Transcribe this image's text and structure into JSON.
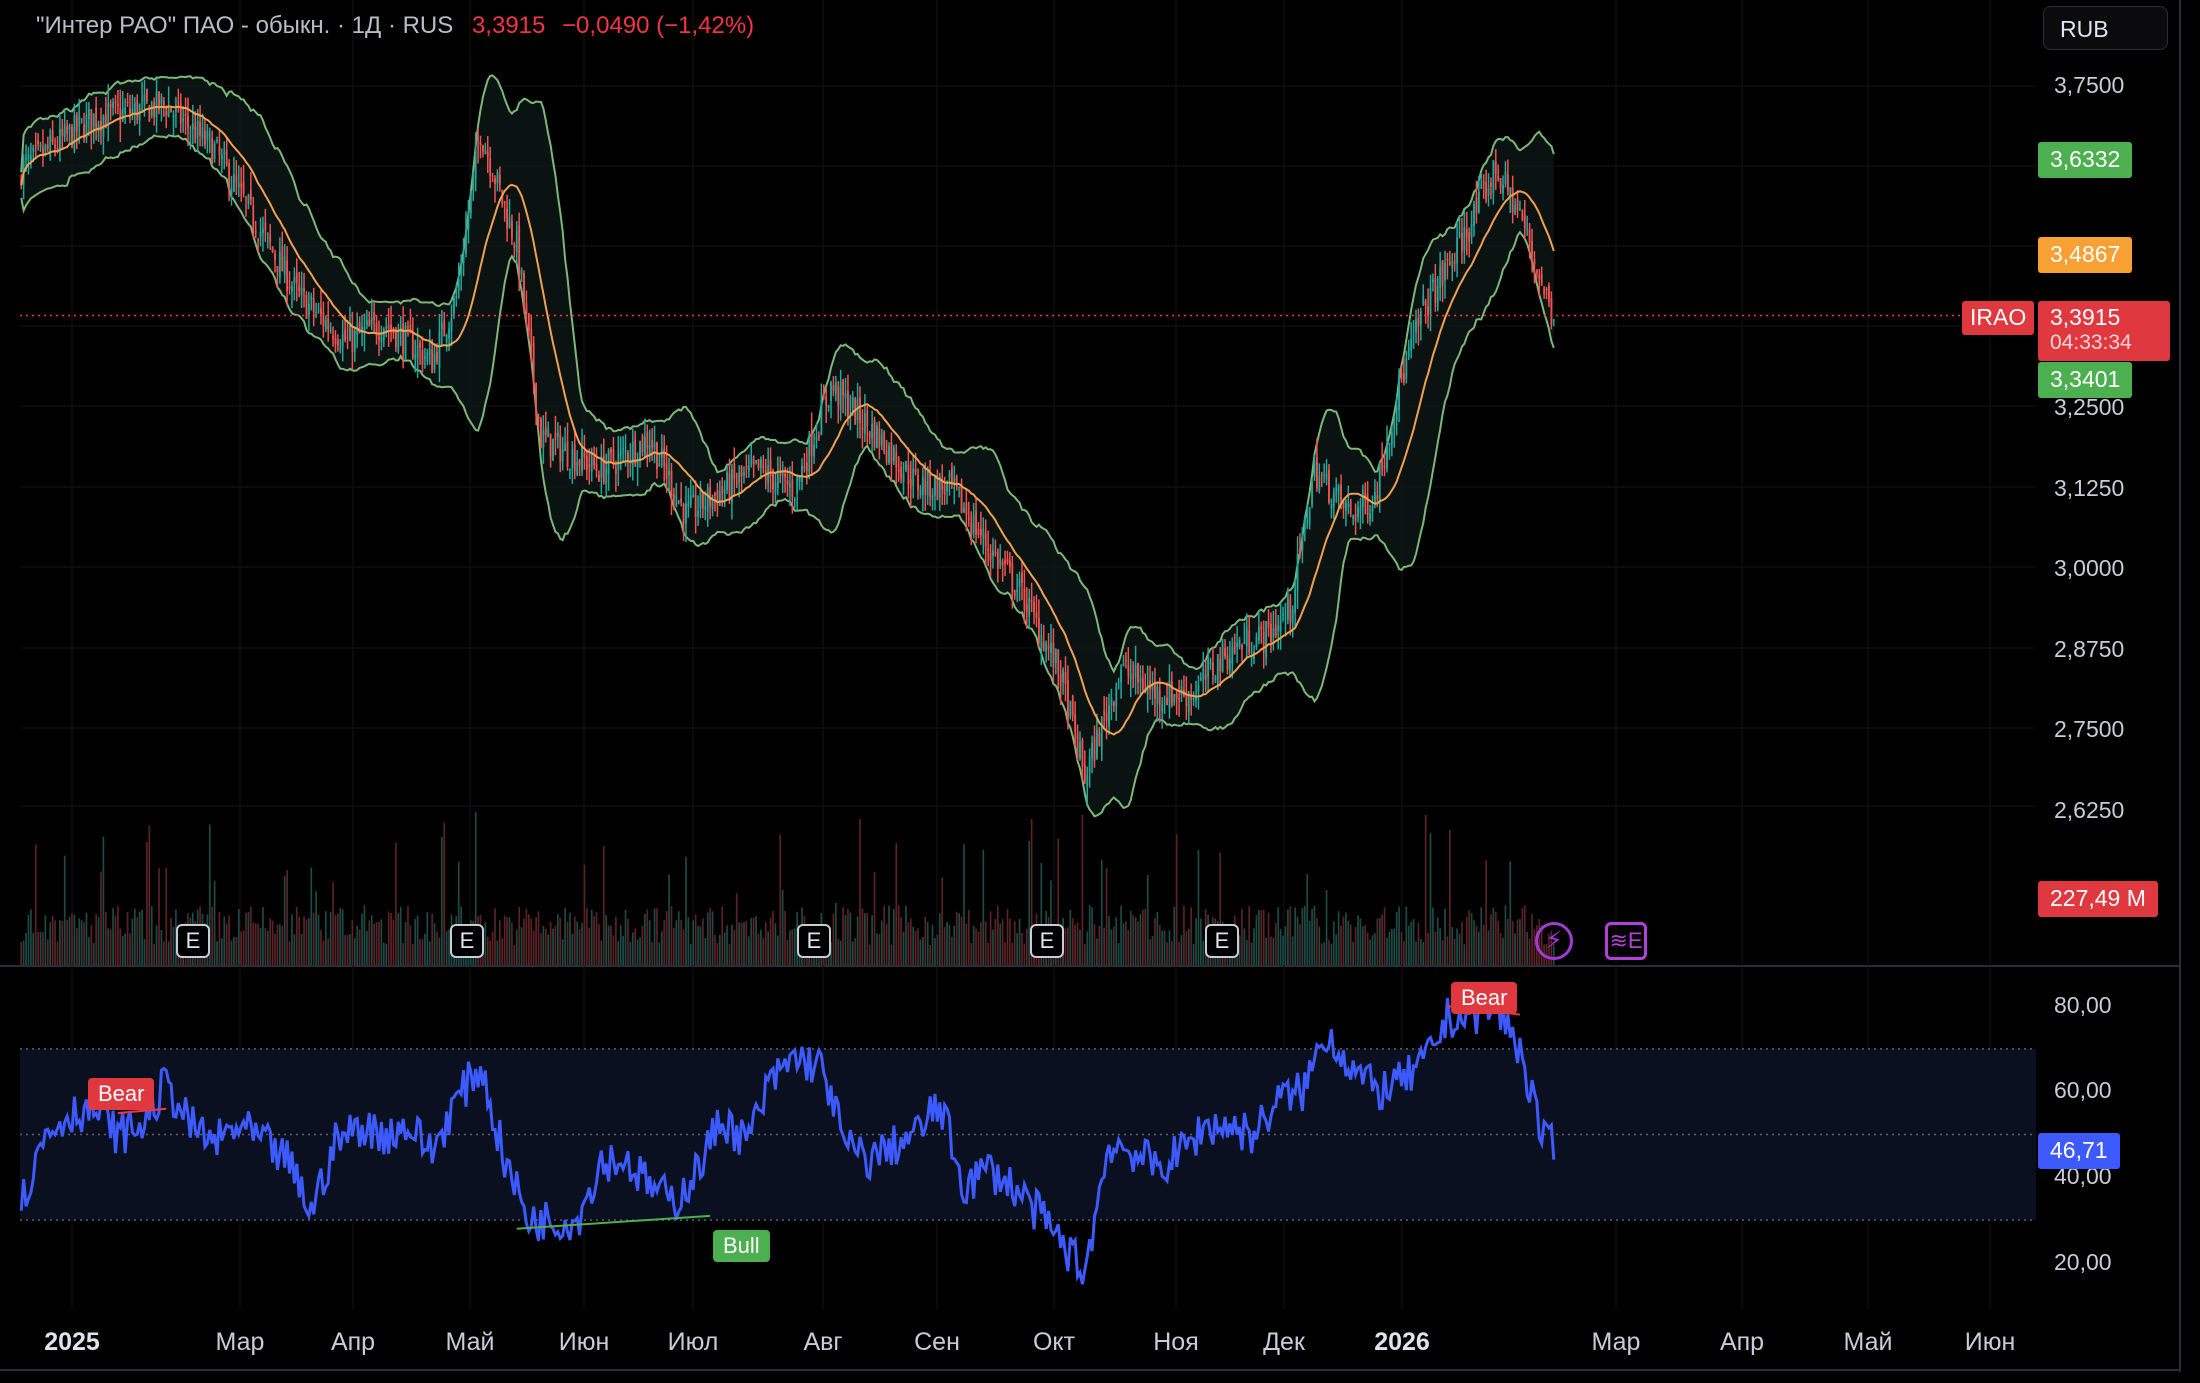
{
  "legend": {
    "symbol": "\"Интер РАО\" ПАО - обыкн. · 1Д · RUS",
    "price": "3,3915",
    "change": "−0,0490 (−1,42%)"
  },
  "currency_button": "RUB",
  "price_scale": {
    "ticks": [
      "3,7500",
      "3,2500",
      "3,1250",
      "3,0000",
      "2,8750",
      "2,7500",
      "2,6250"
    ],
    "tags": {
      "upper_band": "3,6332",
      "middle_band": "3,4867",
      "ticker": "IRAO",
      "last_price": "3,3915",
      "countdown": "04:33:34",
      "lower_band": "3,3401",
      "volume": "227,49 M"
    }
  },
  "rsi_scale": {
    "ticks": [
      "80,00",
      "60,00",
      "40,00",
      "20,00"
    ],
    "value": "46,71"
  },
  "time_axis": [
    {
      "label": "2025",
      "year": true
    },
    {
      "label": "Мар",
      "year": false
    },
    {
      "label": "Апр",
      "year": false
    },
    {
      "label": "Май",
      "year": false
    },
    {
      "label": "Июн",
      "year": false
    },
    {
      "label": "Июл",
      "year": false
    },
    {
      "label": "Авг",
      "year": false
    },
    {
      "label": "Сен",
      "year": false
    },
    {
      "label": "Окт",
      "year": false
    },
    {
      "label": "Ноя",
      "year": false
    },
    {
      "label": "Дек",
      "year": false
    },
    {
      "label": "2026",
      "year": true
    },
    {
      "label": "Мар",
      "year": false
    },
    {
      "label": "Апр",
      "year": false
    },
    {
      "label": "Май",
      "year": false
    },
    {
      "label": "Июн",
      "year": false
    }
  ],
  "earnings_marker": "E",
  "signals": {
    "bear1": "Bear",
    "bull": "Bull",
    "bear2": "Bear"
  },
  "icons": {
    "flash": "flash-icon",
    "earnings_next": "earnings-calendar-icon",
    "flash_glyph": "⚡",
    "earnings_glyph": "≋E"
  },
  "colors": {
    "up": "#26a69a",
    "down": "#ef5350",
    "rsi": "#3d5afe",
    "band": "#7cb879",
    "basis": "#f0a050",
    "bear": "#f23645",
    "bull": "#4caf50"
  },
  "chart_data": {
    "type": "candlestick",
    "price_range": [
      2.6,
      3.8
    ],
    "rsi_range": [
      10,
      90
    ],
    "close_anchors": [
      [
        0,
        3.62
      ],
      [
        30,
        3.7
      ],
      [
        60,
        3.72
      ],
      [
        80,
        3.65
      ],
      [
        95,
        3.55
      ],
      [
        115,
        3.42
      ],
      [
        135,
        3.35
      ],
      [
        150,
        3.38
      ],
      [
        170,
        3.32
      ],
      [
        180,
        3.42
      ],
      [
        190,
        3.68
      ],
      [
        205,
        3.5
      ],
      [
        215,
        3.2
      ],
      [
        240,
        3.15
      ],
      [
        260,
        3.2
      ],
      [
        275,
        3.08
      ],
      [
        295,
        3.13
      ],
      [
        305,
        3.15
      ],
      [
        320,
        3.12
      ],
      [
        335,
        3.28
      ],
      [
        355,
        3.2
      ],
      [
        370,
        3.13
      ],
      [
        385,
        3.12
      ],
      [
        400,
        3.03
      ],
      [
        415,
        2.95
      ],
      [
        430,
        2.83
      ],
      [
        440,
        2.67
      ],
      [
        455,
        2.84
      ],
      [
        470,
        2.8
      ],
      [
        485,
        2.8
      ],
      [
        495,
        2.85
      ],
      [
        505,
        2.88
      ],
      [
        515,
        2.89
      ],
      [
        525,
        2.93
      ],
      [
        535,
        3.15
      ],
      [
        550,
        3.08
      ],
      [
        560,
        3.11
      ],
      [
        570,
        3.28
      ],
      [
        580,
        3.4
      ],
      [
        595,
        3.5
      ],
      [
        610,
        3.62
      ],
      [
        620,
        3.55
      ],
      [
        630,
        3.43
      ],
      [
        634,
        3.39
      ]
    ],
    "rsi_anchors": [
      [
        0,
        34
      ],
      [
        10,
        50
      ],
      [
        20,
        55
      ],
      [
        30,
        56
      ],
      [
        40,
        50
      ],
      [
        50,
        52
      ],
      [
        60,
        62
      ],
      [
        70,
        52
      ],
      [
        80,
        48
      ],
      [
        90,
        52
      ],
      [
        100,
        48
      ],
      [
        110,
        44
      ],
      [
        120,
        32
      ],
      [
        130,
        48
      ],
      [
        140,
        52
      ],
      [
        150,
        50
      ],
      [
        160,
        52
      ],
      [
        170,
        46
      ],
      [
        180,
        58
      ],
      [
        190,
        66
      ],
      [
        200,
        44
      ],
      [
        210,
        30
      ],
      [
        230,
        30
      ],
      [
        240,
        44
      ],
      [
        250,
        44
      ],
      [
        260,
        38
      ],
      [
        270,
        34
      ],
      [
        280,
        42
      ],
      [
        290,
        54
      ],
      [
        300,
        48
      ],
      [
        310,
        62
      ],
      [
        320,
        68
      ],
      [
        330,
        66
      ],
      [
        335,
        60
      ],
      [
        340,
        48
      ],
      [
        350,
        44
      ],
      [
        360,
        47
      ],
      [
        370,
        50
      ],
      [
        380,
        57
      ],
      [
        390,
        38
      ],
      [
        400,
        42
      ],
      [
        410,
        38
      ],
      [
        420,
        32
      ],
      [
        430,
        25
      ],
      [
        440,
        18
      ],
      [
        450,
        48
      ],
      [
        460,
        46
      ],
      [
        470,
        42
      ],
      [
        480,
        46
      ],
      [
        490,
        52
      ],
      [
        500,
        52
      ],
      [
        510,
        50
      ],
      [
        520,
        58
      ],
      [
        530,
        60
      ],
      [
        540,
        74
      ],
      [
        550,
        66
      ],
      [
        560,
        60
      ],
      [
        570,
        62
      ],
      [
        580,
        66
      ],
      [
        590,
        77
      ],
      [
        600,
        78
      ],
      [
        610,
        80
      ],
      [
        620,
        70
      ],
      [
        630,
        48
      ],
      [
        634,
        47
      ]
    ],
    "earnings_positions": [
      0.089,
      0.212,
      0.37,
      0.475,
      0.555
    ],
    "signal_positions": {
      "bear1": [
        0.05,
        54
      ],
      "bull": [
        0.34,
        28
      ],
      "bear2": [
        0.676,
        81
      ]
    }
  }
}
